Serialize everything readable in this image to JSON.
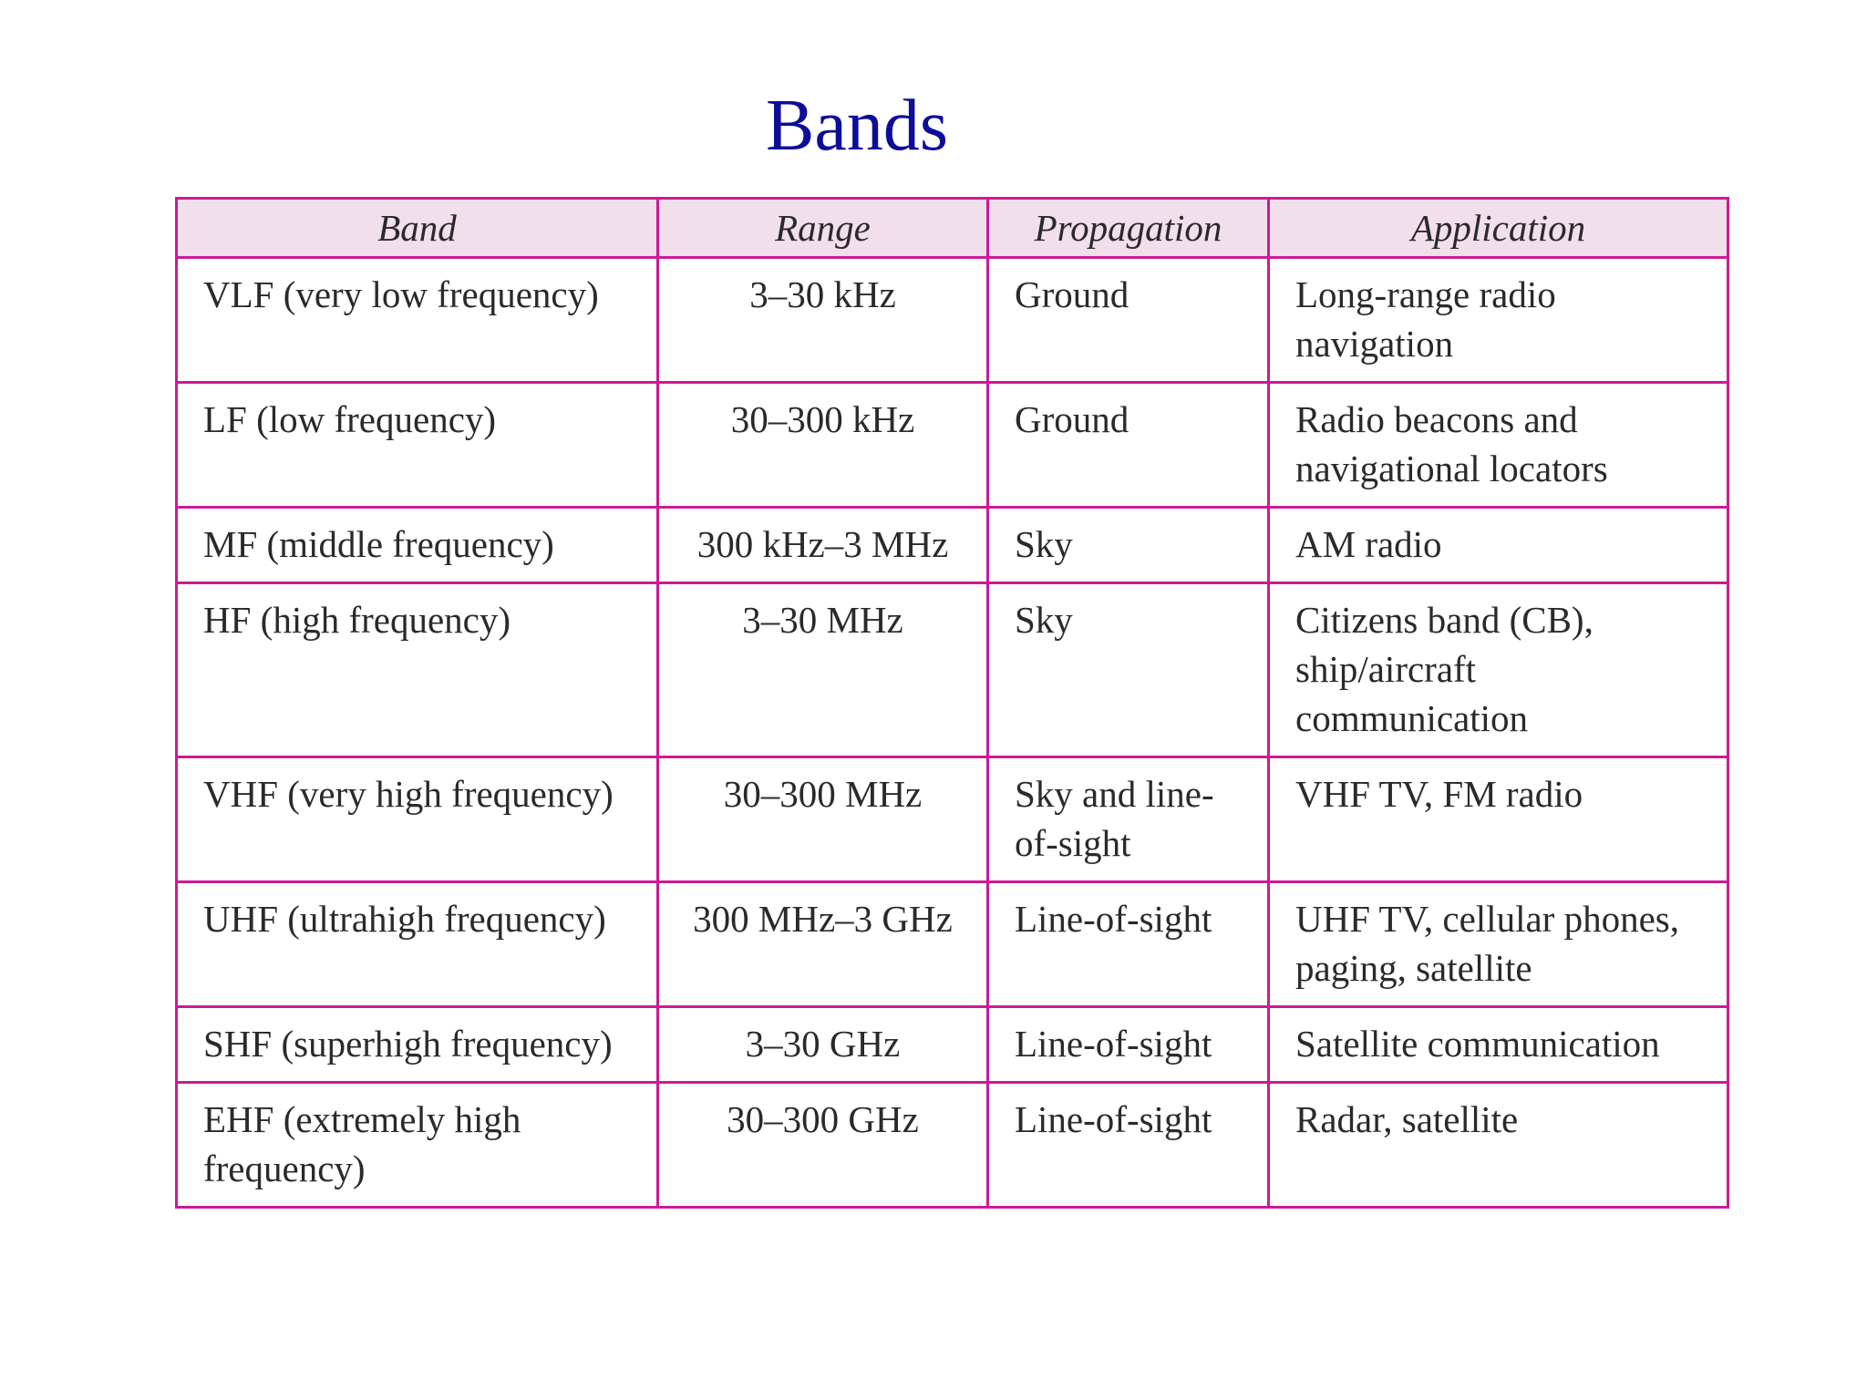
{
  "title": "Bands",
  "table": {
    "headers": [
      "Band",
      "Range",
      "Propagation",
      "Application"
    ],
    "rows": [
      [
        "VLF (very low frequency)",
        "3–30 kHz",
        "Ground",
        "Long-range radio navigation"
      ],
      [
        "LF (low frequency)",
        "30–300 kHz",
        "Ground",
        "Radio beacons and navigational locators"
      ],
      [
        "MF (middle frequency)",
        "300 kHz–3 MHz",
        "Sky",
        "AM radio"
      ],
      [
        "HF (high frequency)",
        "3–30 MHz",
        "Sky",
        "Citizens band (CB), ship/aircraft communication"
      ],
      [
        "VHF (very high frequency)",
        "30–300 MHz",
        "Sky and line-of-sight",
        "VHF TV, FM radio"
      ],
      [
        "UHF (ultrahigh frequency)",
        "300 MHz–3 GHz",
        "Line-of-sight",
        "UHF TV, cellular phones, paging, satellite"
      ],
      [
        "SHF (superhigh frequency)",
        "3–30 GHz",
        "Line-of-sight",
        "Satellite communication"
      ],
      [
        "EHF (extremely high frequency)",
        "30–300 GHz",
        "Line-of-sight",
        "Radar, satellite"
      ]
    ]
  },
  "colors": {
    "title": "#0d0d9a",
    "border": "#cc1a96",
    "header_background": "#f2dfec",
    "text": "#2a2a2a"
  }
}
